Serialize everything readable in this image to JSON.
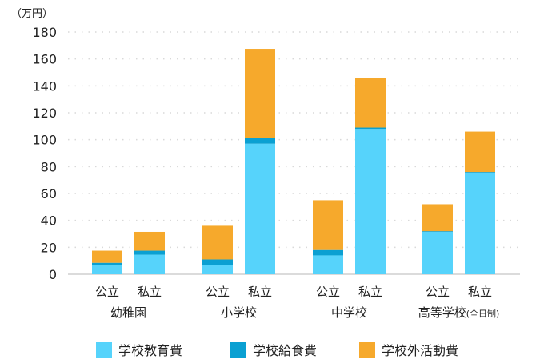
{
  "chart_data": {
    "type": "bar",
    "stacked": true,
    "unit_label": "（万円）",
    "ylim": [
      0,
      180
    ],
    "yticks": [
      0,
      20,
      40,
      60,
      80,
      100,
      120,
      140,
      160,
      180
    ],
    "grid": "horizontal-dotted",
    "legend_position": "bottom",
    "groups": [
      {
        "label": "幼稚園",
        "sub_label": "",
        "categories": [
          "公立",
          "私立"
        ]
      },
      {
        "label": "小学校",
        "sub_label": "",
        "categories": [
          "公立",
          "私立"
        ]
      },
      {
        "label": "中学校",
        "sub_label": "",
        "categories": [
          "公立",
          "私立"
        ]
      },
      {
        "label": "高等学校",
        "sub_label": "(全日制)",
        "categories": [
          "公立",
          "私立"
        ]
      }
    ],
    "series": [
      {
        "name": "学校教育費",
        "color": "#56d3fb",
        "values": [
          7,
          14.5,
          7,
          97,
          14,
          108,
          31.5,
          75.5
        ]
      },
      {
        "name": "学校給食費",
        "color": "#0aa0d2",
        "values": [
          1.5,
          3,
          4,
          4.5,
          4,
          1,
          0.5,
          0.5
        ]
      },
      {
        "name": "学校外活動費",
        "color": "#f6a92c",
        "values": [
          9,
          14,
          25,
          66,
          37,
          37,
          20,
          30
        ]
      }
    ]
  }
}
